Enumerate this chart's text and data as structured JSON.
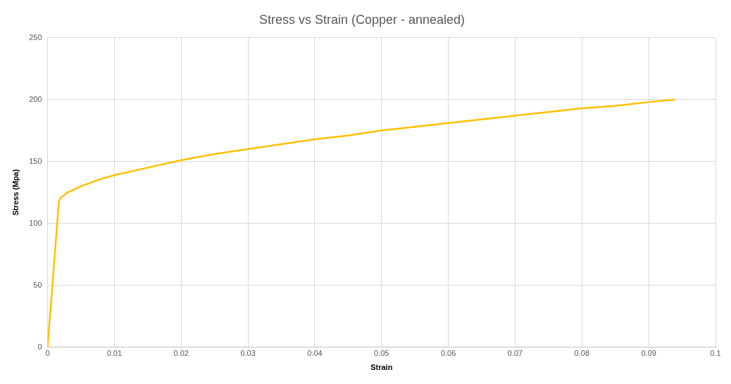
{
  "chart_data": {
    "type": "line",
    "title": "Stress vs Strain (Copper - annealed)",
    "xlabel": "Strain",
    "ylabel": "Stress (Mpa)",
    "xlim": [
      0,
      0.1
    ],
    "xticks": [
      0,
      0.01,
      0.02,
      0.03,
      0.04,
      0.05,
      0.06,
      0.07,
      0.08,
      0.09,
      0.1
    ],
    "ylim": [
      0,
      250
    ],
    "yticks": [
      0,
      50,
      100,
      150,
      200,
      250
    ],
    "grid": true,
    "legend": false,
    "marker": "none",
    "line_style": "solid",
    "series": [
      {
        "color": "#ffc000",
        "x": [
          0,
          0.0017,
          0.002,
          0.003,
          0.005,
          0.0075,
          0.01,
          0.015,
          0.02,
          0.025,
          0.03,
          0.035,
          0.04,
          0.045,
          0.05,
          0.055,
          0.06,
          0.065,
          0.07,
          0.075,
          0.08,
          0.085,
          0.09,
          0.094
        ],
        "values": [
          0,
          118,
          121,
          125,
          130,
          135,
          139,
          145,
          151,
          156,
          160,
          164,
          168,
          171,
          175,
          178,
          181,
          184,
          187,
          190,
          193,
          195,
          198,
          200
        ]
      }
    ]
  }
}
